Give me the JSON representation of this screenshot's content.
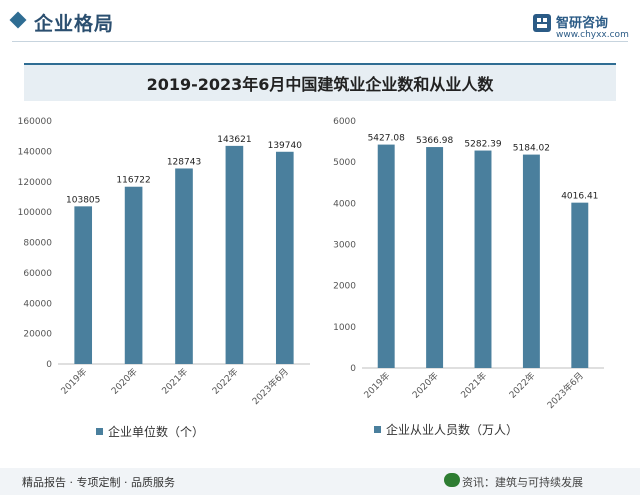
{
  "header": {
    "title": "企业格局",
    "logo_name": "智研咨询",
    "logo_url": "www.chyxx.com"
  },
  "chart_title": "2019-2023年6月中国建筑业企业数和从业人数",
  "chart_data": [
    {
      "type": "bar",
      "categories": [
        "2019年",
        "2020年",
        "2021年",
        "2022年",
        "2023年6月"
      ],
      "values": [
        103805,
        116722,
        128743,
        143621,
        139740
      ],
      "value_labels": [
        "103805",
        "116722",
        "128743",
        "143621",
        "139740"
      ],
      "ylim": [
        0,
        160000
      ],
      "yticks": [
        0,
        20000,
        40000,
        60000,
        80000,
        100000,
        120000,
        140000,
        160000
      ],
      "legend": "企业单位数（个）",
      "legend_position": "bottom",
      "color": "#4a7f9d",
      "grid": false
    },
    {
      "type": "bar",
      "categories": [
        "2019年",
        "2020年",
        "2021年",
        "2022年",
        "2023年6月"
      ],
      "values": [
        5427.08,
        5366.98,
        5282.39,
        5184.02,
        4016.41
      ],
      "value_labels": [
        "5427.08",
        "5366.98",
        "5282.39",
        "5184.02",
        "4016.41"
      ],
      "ylim": [
        0,
        6000
      ],
      "yticks": [
        0,
        1000,
        2000,
        3000,
        4000,
        5000,
        6000
      ],
      "legend": "企业从业人员数（万人）",
      "legend_position": "bottom",
      "color": "#4a7f9d",
      "grid": false
    }
  ],
  "footer": {
    "text": "精品报告 · 专项定制 · 品质服务",
    "logo": "智研咨询",
    "source": "资讯：建筑与可持续发展"
  }
}
